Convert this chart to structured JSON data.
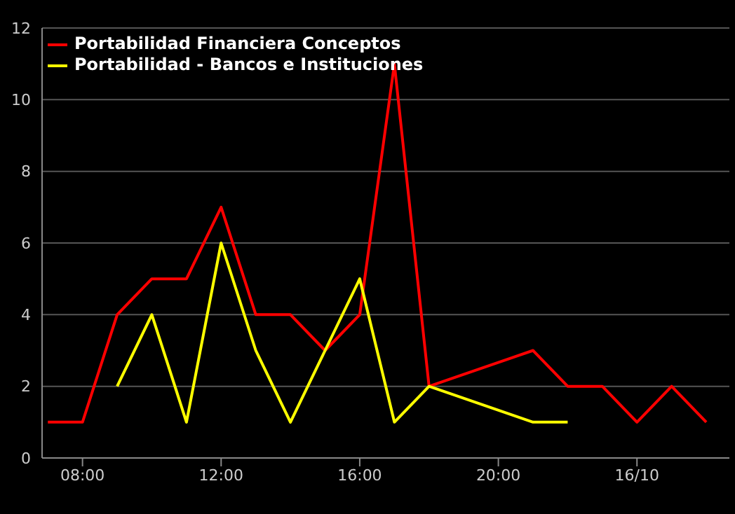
{
  "chart_data": {
    "type": "line",
    "x": [
      "--10-15T07:00",
      "--10-15T08:00",
      "--10-15T09:00",
      "--10-15T10:00",
      "--10-15T11:00",
      "--10-15T12:00",
      "--10-15T13:00",
      "--10-15T14:00",
      "--10-15T15:00",
      "--10-15T16:00",
      "--10-15T17:00",
      "--10-15T18:00",
      "--10-15T21:00",
      "--10-15T22:00",
      "--10-15T23:00",
      "--10-16T00:00",
      "--10-16T01:00",
      "--10-16T02:00"
    ],
    "series": [
      {
        "name": "Portabilidad Financiera Conceptos",
        "color": "#ff0000",
        "values": [
          1,
          1,
          4,
          5,
          5,
          7,
          4,
          4,
          3,
          4,
          11,
          2,
          3,
          2,
          2,
          1,
          2,
          1
        ]
      },
      {
        "name": "Portabilidad - Bancos e Instituciones",
        "color": "#ffff00",
        "x": [
          "--10-15T09:00",
          "--10-15T10:00",
          "--10-15T11:00",
          "--10-15T12:00",
          "--10-15T13:00",
          "--10-15T14:00",
          "--10-15T15:00",
          "--10-15T16:00",
          "--10-15T17:00",
          "--10-15T18:00",
          "--10-15T21:00",
          "--10-15T22:00"
        ],
        "values": [
          2,
          4,
          1,
          6,
          3,
          1,
          3,
          5,
          1,
          2,
          1,
          1
        ]
      }
    ],
    "xlim": [
      "--10-15T06:50",
      "--10-16T02:40"
    ],
    "xticks": [
      {
        "value": "--10-15T08:00",
        "label": "08:00"
      },
      {
        "value": "--10-15T12:00",
        "label": "12:00"
      },
      {
        "value": "--10-15T16:00",
        "label": "16:00"
      },
      {
        "value": "--10-15T20:00",
        "label": "20:00"
      },
      {
        "value": "--10-16T00:00",
        "label": "16/10"
      }
    ],
    "ylim": [
      0,
      12
    ],
    "yticks": [
      0,
      2,
      4,
      6,
      8,
      10,
      12
    ],
    "grid": "y",
    "legend": "top left",
    "marker": "none",
    "line_style": "solid"
  }
}
